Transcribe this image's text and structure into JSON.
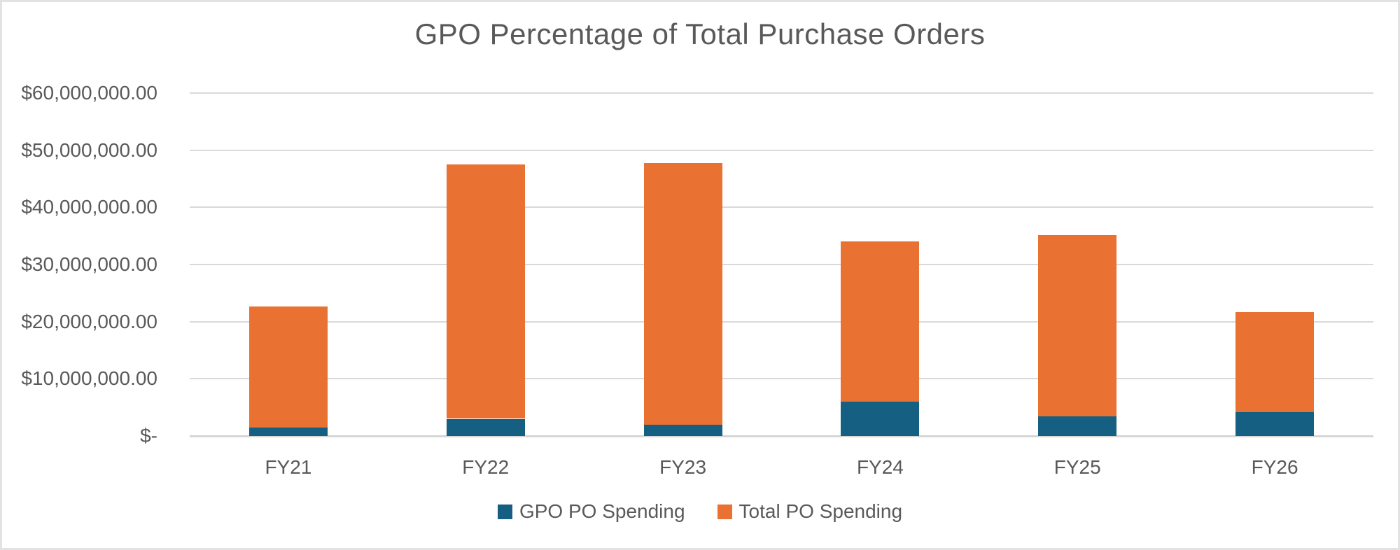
{
  "chart_data": {
    "type": "bar",
    "stacked": true,
    "title": "GPO Percentage of Total Purchase Orders",
    "categories": [
      "FY21",
      "FY22",
      "FY23",
      "FY24",
      "FY25",
      "FY26"
    ],
    "series": [
      {
        "name": "GPO PO Spending",
        "color": "#156082",
        "values": [
          1500000,
          3000000,
          2000000,
          6000000,
          3400000,
          4200000
        ]
      },
      {
        "name": "Total PO Spending",
        "color": "#E97132",
        "values": [
          21200000,
          44500000,
          45800000,
          28000000,
          31800000,
          17500000
        ]
      }
    ],
    "bar_top_totals": [
      22700000,
      47500000,
      47800000,
      34000000,
      35200000,
      21700000
    ],
    "y_axis": {
      "min": 0,
      "max": 60000000,
      "tick_step": 10000000,
      "ticks": [
        {
          "value": 60000000,
          "label": "$60,000,000.00"
        },
        {
          "value": 50000000,
          "label": "$50,000,000.00"
        },
        {
          "value": 40000000,
          "label": "$40,000,000.00"
        },
        {
          "value": 30000000,
          "label": "$30,000,000.00"
        },
        {
          "value": 20000000,
          "label": "$20,000,000.00"
        },
        {
          "value": 10000000,
          "label": "$10,000,000.00"
        },
        {
          "value": 0,
          "label": "$-"
        }
      ]
    },
    "legend": {
      "position": "bottom",
      "items": [
        "GPO PO Spending",
        "Total PO Spending"
      ]
    },
    "grid": true
  },
  "styles": {
    "text_color": "#595959",
    "gridline_color": "#D9D9D9",
    "baseline_color": "#D6D6D6",
    "background": "#FFFFFF",
    "frame_border_color": "#E2E2E2"
  }
}
